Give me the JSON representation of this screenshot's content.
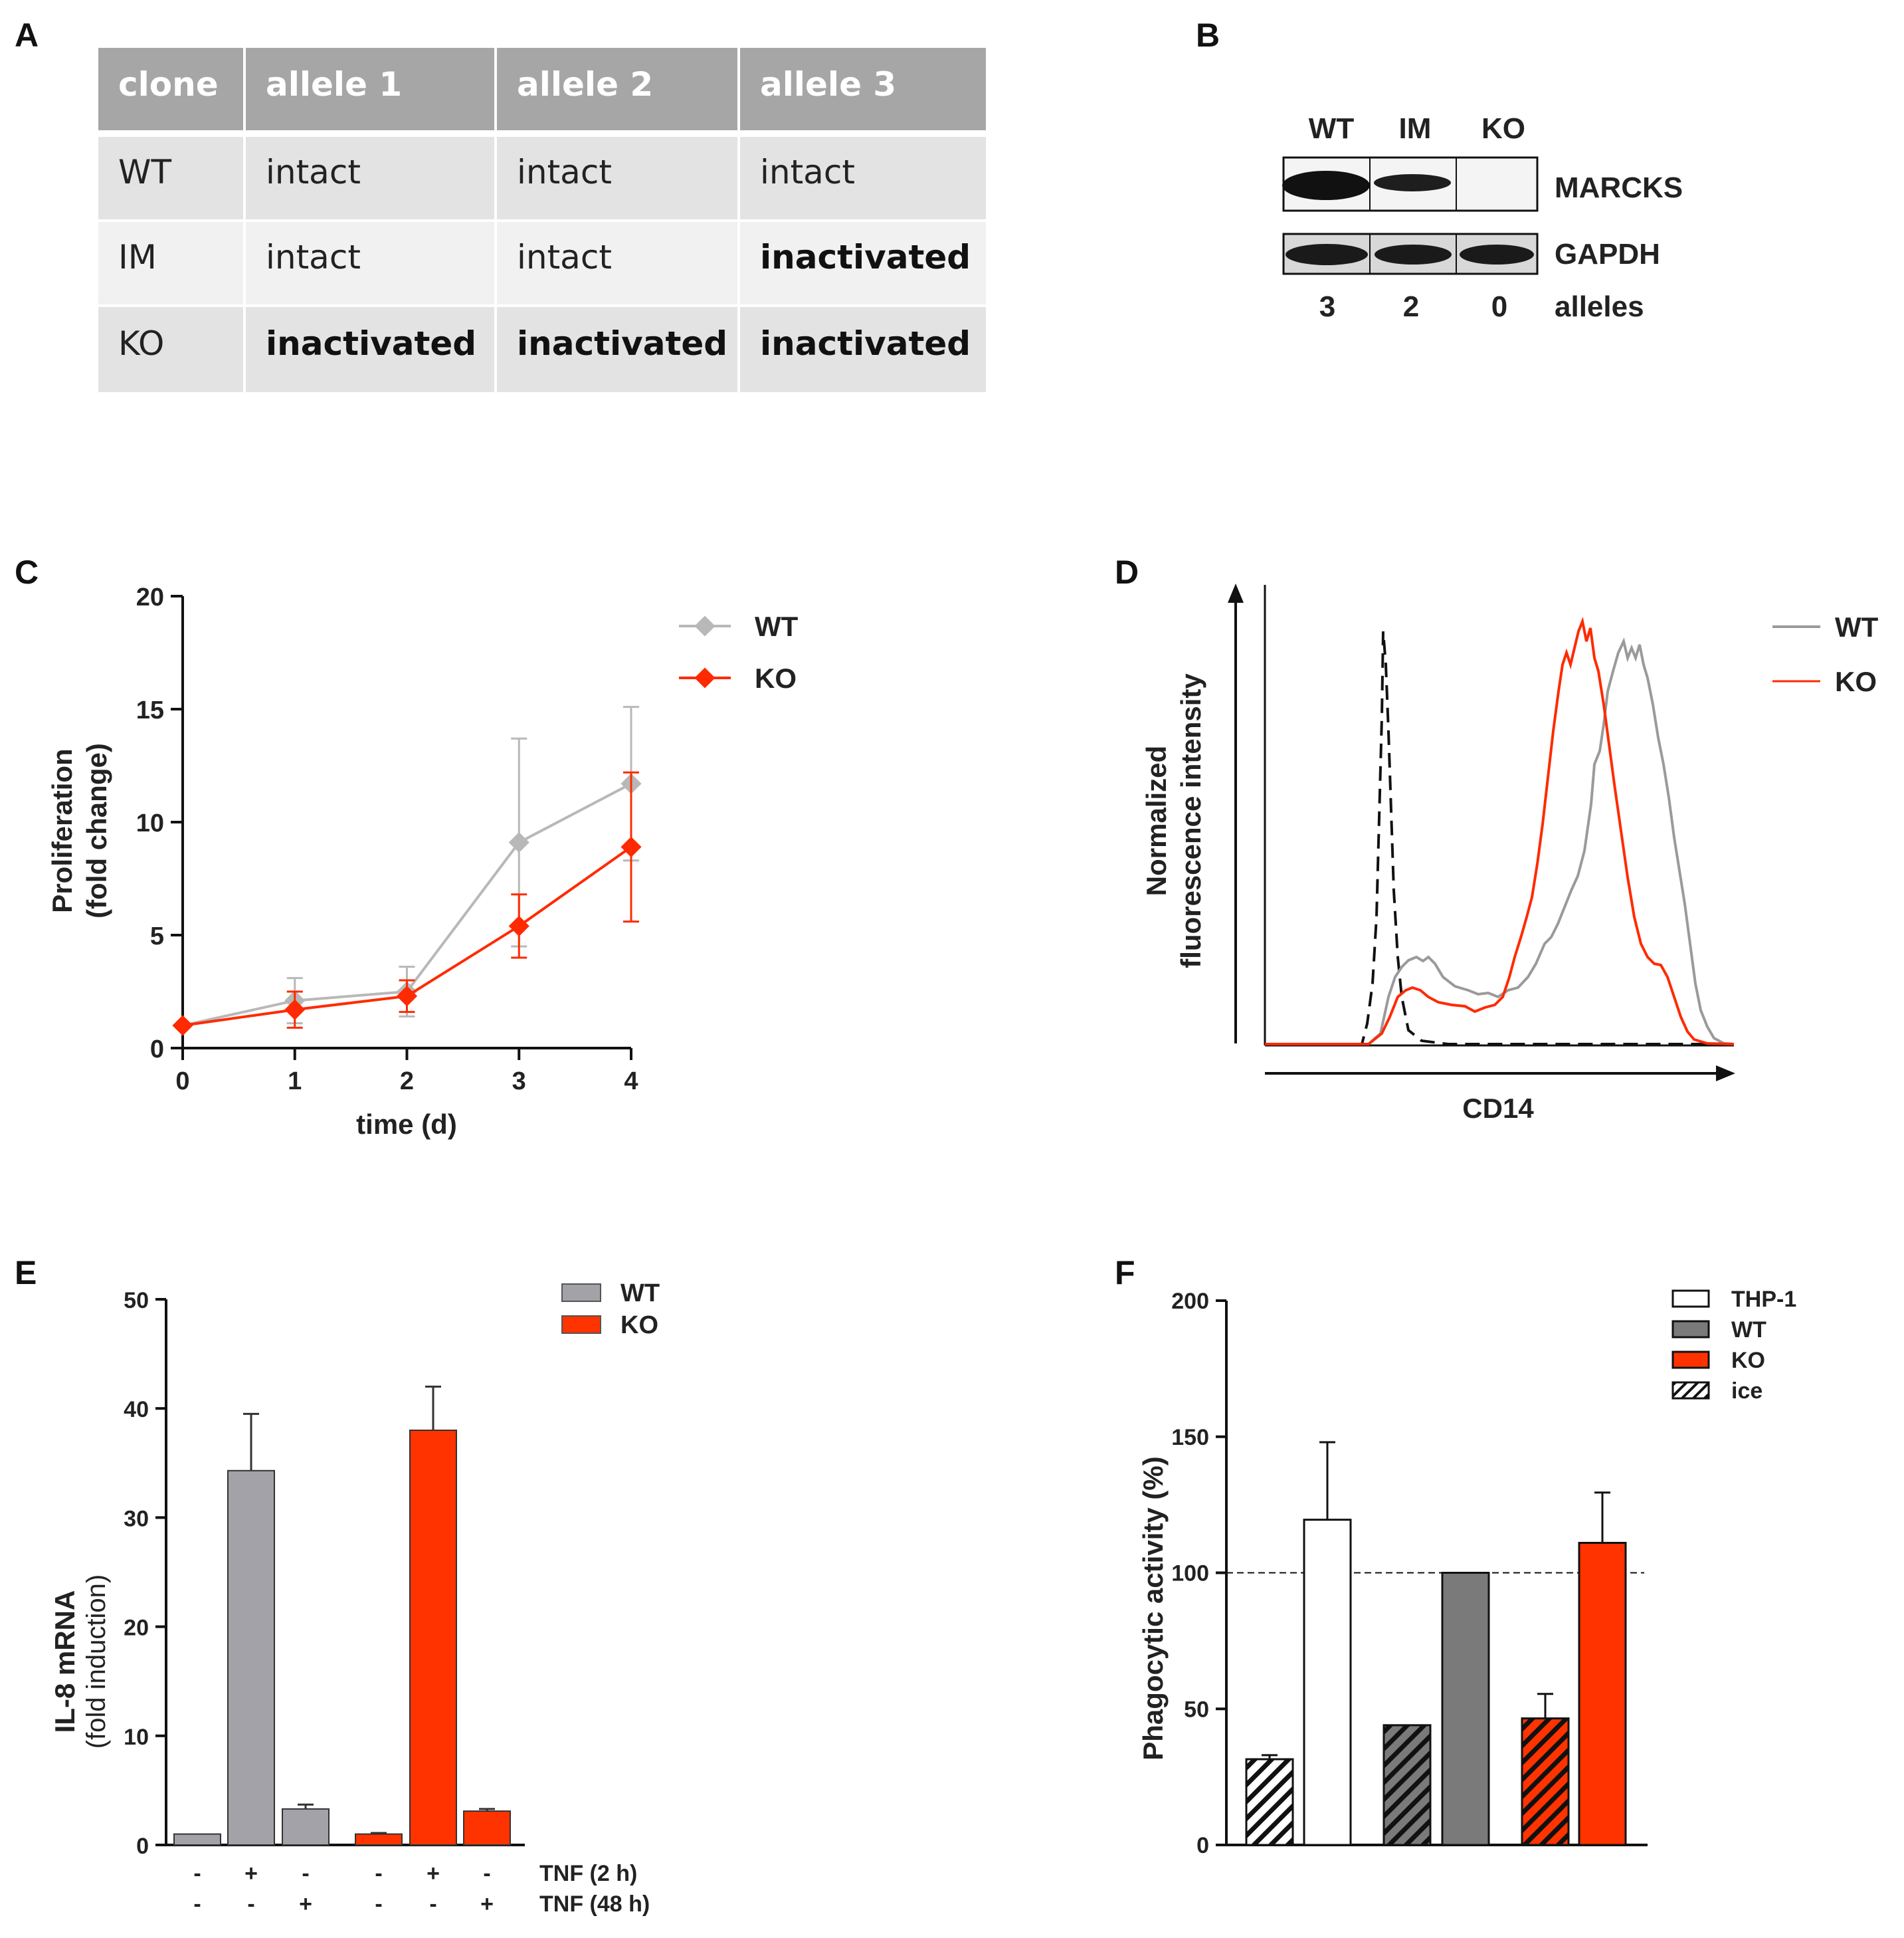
{
  "panels": {
    "A": {
      "letter": "A",
      "headers": [
        "clone",
        "allele 1",
        "allele 2",
        "allele 3"
      ],
      "rows": [
        [
          "WT",
          "intact",
          "intact",
          "intact"
        ],
        [
          "IM",
          "intact",
          "intact",
          "inactivated"
        ],
        [
          "KO",
          "inactivated",
          "inactivated",
          "inactivated"
        ]
      ]
    },
    "B": {
      "letter": "B",
      "lanes": [
        "WT",
        "IM",
        "KO"
      ],
      "proteins": [
        "MARCKS",
        "GAPDH"
      ],
      "allele_counts": [
        "3",
        "2",
        "0"
      ],
      "allele_label": "alleles"
    },
    "D": {
      "letter": "D",
      "ylabel_line1": "Normalized",
      "ylabel_line2": "fluorescence intensity",
      "xlabel": "CD14",
      "legend": [
        "WT",
        "KO"
      ]
    }
  },
  "chart_data": [
    {
      "panel": "C",
      "letter": "C",
      "type": "line",
      "title": "",
      "xlabel": "time (d)",
      "ylabel_line1": "Proliferation",
      "ylabel_line2": "(fold change)",
      "x": [
        0,
        1,
        2,
        3,
        4
      ],
      "xticks": [
        "0",
        "1",
        "2",
        "3",
        "4"
      ],
      "yticks": [
        "0",
        "5",
        "10",
        "15",
        "20"
      ],
      "ylim": [
        0,
        20
      ],
      "xlim": [
        0,
        4
      ],
      "series": [
        {
          "name": "WT",
          "color": "#b8b8b8",
          "values": [
            1.0,
            2.1,
            2.5,
            9.1,
            11.7
          ],
          "errors": [
            0.0,
            1.0,
            1.1,
            4.6,
            3.4
          ]
        },
        {
          "name": "KO",
          "color": "#ff2a00",
          "values": [
            1.0,
            1.7,
            2.3,
            5.4,
            8.9
          ],
          "errors": [
            0.0,
            0.8,
            0.7,
            1.4,
            3.3
          ]
        }
      ]
    },
    {
      "panel": "E",
      "letter": "E",
      "type": "bar",
      "ylabel_line1": "IL-8 mRNA",
      "ylabel_line2": "(fold induction)",
      "ylim": [
        0,
        50
      ],
      "yticks": [
        "0",
        "10",
        "20",
        "30",
        "40",
        "50"
      ],
      "condition_labels": [
        "TNF (2 h)",
        "TNF (48 h)"
      ],
      "conditions": {
        "tnf_2h": [
          "-",
          "+",
          "-",
          "-",
          "+",
          "-"
        ],
        "tnf_48h": [
          "-",
          "-",
          "+",
          "-",
          "-",
          "+"
        ]
      },
      "legend": [
        {
          "name": "WT",
          "color": "#a2a2a8"
        },
        {
          "name": "KO",
          "color": "#ff3300"
        }
      ],
      "bars": [
        {
          "series": "WT",
          "value": 1.0,
          "error": 0.0
        },
        {
          "series": "WT",
          "value": 34.3,
          "error": 5.2
        },
        {
          "series": "WT",
          "value": 3.3,
          "error": 0.4
        },
        {
          "series": "KO",
          "value": 1.0,
          "error": 0.1
        },
        {
          "series": "KO",
          "value": 38.0,
          "error": 4.0
        },
        {
          "series": "KO",
          "value": 3.1,
          "error": 0.2
        }
      ]
    },
    {
      "panel": "F",
      "letter": "F",
      "type": "bar",
      "ylabel": "Phagocytic activity (%)",
      "ylim": [
        0,
        200
      ],
      "yticks": [
        "0",
        "50",
        "100",
        "150",
        "200"
      ],
      "reference_line": 100,
      "legend": [
        {
          "name": "THP-1",
          "color": "#ffffff",
          "pattern": "solid"
        },
        {
          "name": "WT",
          "color": "#7a7a7a",
          "pattern": "solid"
        },
        {
          "name": "KO",
          "color": "#ff3300",
          "pattern": "solid"
        },
        {
          "name": "ice",
          "color": "#ffffff",
          "pattern": "hatched"
        }
      ],
      "bars": [
        {
          "group": "THP-1",
          "condition": "ice",
          "value": 31.5,
          "error": 1.5
        },
        {
          "group": "THP-1",
          "condition": "normal",
          "value": 119.5,
          "error": 28.5
        },
        {
          "group": "WT",
          "condition": "ice",
          "value": 44.0,
          "error": 0.0
        },
        {
          "group": "WT",
          "condition": "normal",
          "value": 100.0,
          "error": 0.0
        },
        {
          "group": "KO",
          "condition": "ice",
          "value": 46.5,
          "error": 9.0
        },
        {
          "group": "KO",
          "condition": "normal",
          "value": 111.0,
          "error": 18.5
        }
      ]
    }
  ]
}
